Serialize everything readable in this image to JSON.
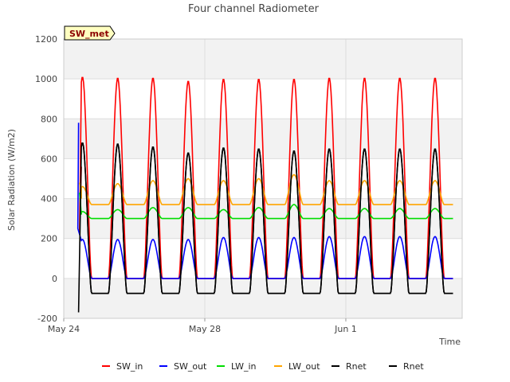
{
  "chart_data": {
    "type": "line",
    "title": "Four channel Radiometer",
    "xlabel": "Time",
    "ylabel": "Solar Radiation (W/m2)",
    "badge": "SW_met",
    "ylim": [
      -200,
      1200
    ],
    "yticks": [
      -200,
      0,
      200,
      400,
      600,
      800,
      1000,
      1200
    ],
    "xlim": [
      0,
      11.3
    ],
    "xticks": [
      {
        "x": 0,
        "label": "May 24"
      },
      {
        "x": 4,
        "label": "May 28"
      },
      {
        "x": 8,
        "label": "Jun 1"
      }
    ],
    "bands": [
      [
        -200,
        0
      ],
      [
        200,
        400
      ],
      [
        600,
        800
      ],
      [
        1000,
        1200
      ]
    ],
    "legend_position": "bottom-center",
    "series": [
      {
        "name": "SW_in",
        "color": "#ff0000",
        "night": 0,
        "peaks": [
          1010,
          1005,
          1005,
          990,
          1000,
          1000,
          1000,
          1005
        ],
        "extra_points": [
          {
            "x": 0.5,
            "y": 560
          },
          {
            "x": 0.45,
            "y": 240
          }
        ]
      },
      {
        "name": "SW_out",
        "color": "#0000ff",
        "night": 0,
        "peaks": [
          195,
          195,
          195,
          195,
          205,
          205,
          205,
          210
        ],
        "extra_points": [
          {
            "x": 0.42,
            "y": 780
          },
          {
            "x": 0.4,
            "y": 250
          }
        ]
      },
      {
        "name": "LW_in",
        "color": "#00dd00",
        "night": 300,
        "peaks": [
          335,
          345,
          355,
          355,
          345,
          355,
          370,
          350
        ],
        "extra_points": [
          {
            "x": 0.45,
            "y": 430
          },
          {
            "x": 0.5,
            "y": 320
          }
        ]
      },
      {
        "name": "LW_out",
        "color": "#ffa500",
        "night": 370,
        "peaks": [
          460,
          475,
          490,
          500,
          490,
          500,
          520,
          490
        ],
        "extra_points": [
          {
            "x": 0.45,
            "y": 480
          },
          {
            "x": 0.5,
            "y": 400
          }
        ]
      },
      {
        "name": "Rnet",
        "color": "#000000",
        "night": -75,
        "peaks": [
          680,
          675,
          660,
          630,
          655,
          650,
          640,
          650
        ],
        "extra_points": [
          {
            "x": 0.42,
            "y": -170
          },
          {
            "x": 0.47,
            "y": 330
          }
        ]
      },
      {
        "name": "Rnet",
        "color": "#000000",
        "night": -75,
        "peaks": [
          680,
          675,
          660,
          630,
          655,
          650,
          640,
          650
        ],
        "extra_points": []
      }
    ]
  }
}
